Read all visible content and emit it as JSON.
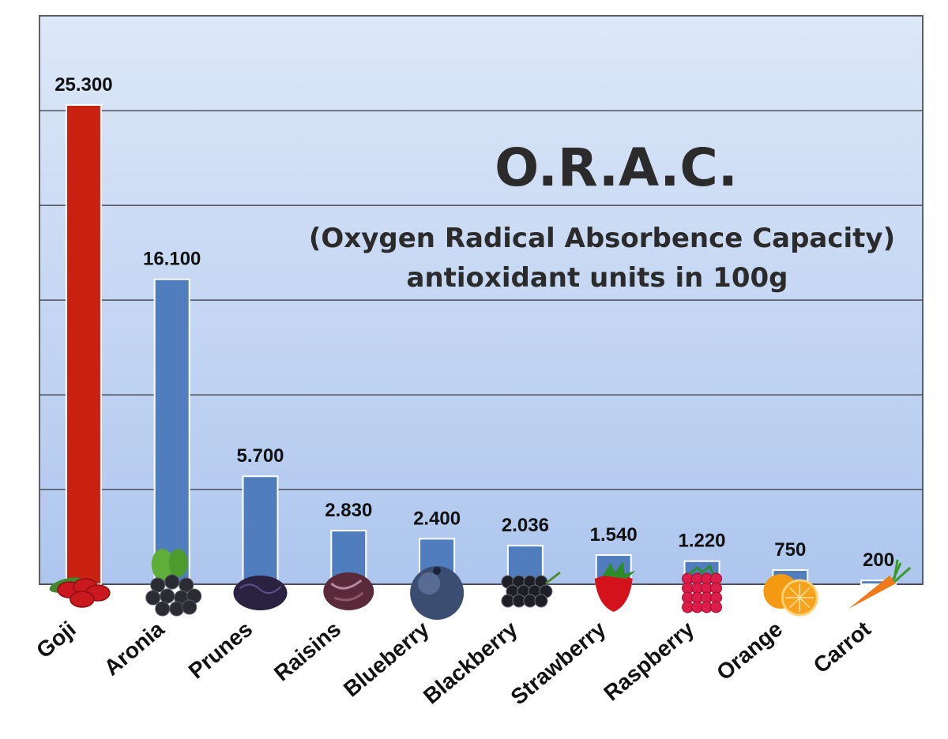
{
  "chart_data": {
    "type": "bar",
    "title": "O.R.A.C.",
    "subtitle_lines": [
      "(Oxygen Radical Absorbence Capacity)",
      "antioxidant units in 100g"
    ],
    "categories": [
      "Goji",
      "Aronia",
      "Prunes",
      "Raisins",
      "Blueberry",
      "Blackberry",
      "Strawberry",
      "Raspberry",
      "Orange",
      "Carrot"
    ],
    "values": [
      25300,
      16100,
      5700,
      2830,
      2400,
      2036,
      1540,
      1220,
      750,
      200
    ],
    "value_labels": [
      "25.300",
      "16.100",
      "5.700",
      "2.830",
      "2.400",
      "2.036",
      "1.540",
      "1.220",
      "750",
      "200"
    ],
    "ylim": [
      0,
      30000
    ],
    "grid": true,
    "colors": {
      "highlight_bar": "#c8210f",
      "bar": "#4f7dbd",
      "bar_border": "#ffffff",
      "background_top": "#c3d5f2",
      "background_bottom": "#e9f0fb",
      "gridline": "#4a4f5a"
    },
    "highlight_index": 0,
    "icons": [
      "goji-berries-icon",
      "aronia-berries-icon",
      "prunes-icon",
      "raisins-icon",
      "blueberry-icon",
      "blackberry-icon",
      "strawberry-icon",
      "raspberry-icon",
      "orange-icon",
      "carrot-icon"
    ]
  }
}
